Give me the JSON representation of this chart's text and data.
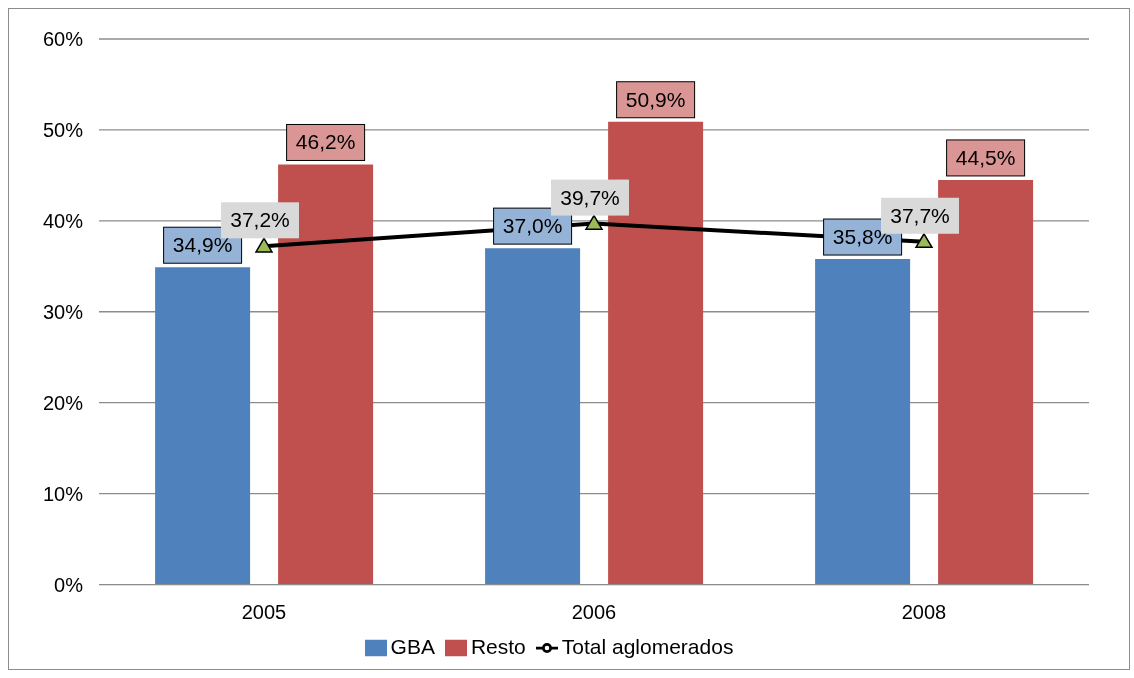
{
  "chart_data": {
    "type": "bar",
    "categories": [
      "2005",
      "2006",
      "2008"
    ],
    "series": [
      {
        "name": "GBA",
        "color": "#4f81bd",
        "values": [
          34.9,
          37.0,
          35.8
        ],
        "value_labels": [
          "34,9%",
          "37,0%",
          "35,8%"
        ]
      },
      {
        "name": "Resto",
        "color": "#c0504d",
        "values": [
          46.2,
          50.9,
          44.5
        ],
        "value_labels": [
          "46,2%",
          "50,9%",
          "44,5%"
        ]
      },
      {
        "name": "Total aglomerados",
        "type": "line",
        "color": "#000000",
        "values": [
          37.2,
          39.7,
          37.7
        ],
        "value_labels": [
          "37,2%",
          "39,7%",
          "37,7%"
        ]
      }
    ],
    "ylim": [
      0,
      60
    ],
    "yticks": [
      {
        "value": 0,
        "label": "0%"
      },
      {
        "value": 10,
        "label": "10%"
      },
      {
        "value": 20,
        "label": "20%"
      },
      {
        "value": 30,
        "label": "30%"
      },
      {
        "value": 40,
        "label": "40%"
      },
      {
        "value": 50,
        "label": "50%"
      },
      {
        "value": 60,
        "label": "60%"
      }
    ],
    "grid": "y",
    "legend": "bottom",
    "marker": "triangle",
    "line_style": "solid"
  }
}
